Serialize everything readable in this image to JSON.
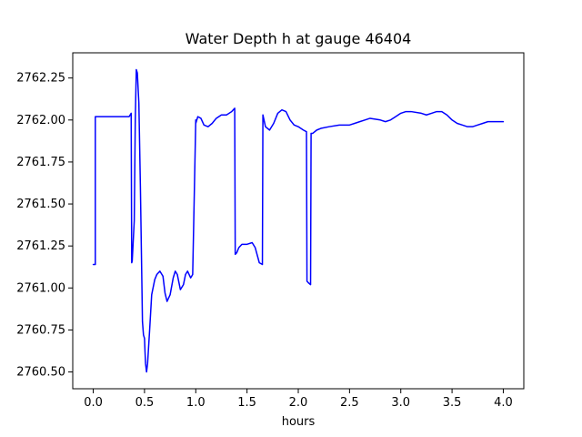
{
  "chart_data": {
    "type": "line",
    "title": "Water Depth h at gauge 46404",
    "xlabel": "hours",
    "ylabel": "",
    "xlim": [
      -0.2,
      4.2
    ],
    "ylim": [
      2760.4,
      2762.4
    ],
    "xticks": [
      0.0,
      0.5,
      1.0,
      1.5,
      2.0,
      2.5,
      3.0,
      3.5,
      4.0
    ],
    "yticks": [
      2760.5,
      2760.75,
      2761.0,
      2761.25,
      2761.5,
      2761.75,
      2762.0,
      2762.25
    ],
    "xtick_labels": [
      "0.0",
      "0.5",
      "1.0",
      "1.5",
      "2.0",
      "2.5",
      "3.0",
      "3.5",
      "4.0"
    ],
    "ytick_labels": [
      "2760.50",
      "2760.75",
      "2761.00",
      "2761.25",
      "2761.50",
      "2761.75",
      "2762.00",
      "2762.25"
    ],
    "grid": false,
    "legend": "none",
    "series": [
      {
        "color": "#0000ff",
        "x": [
          0.0,
          0.02,
          0.02,
          0.05,
          0.1,
          0.2,
          0.3,
          0.35,
          0.37,
          0.375,
          0.38,
          0.4,
          0.41,
          0.42,
          0.43,
          0.445,
          0.46,
          0.47,
          0.48,
          0.49,
          0.5,
          0.505,
          0.51,
          0.52,
          0.53,
          0.55,
          0.57,
          0.6,
          0.62,
          0.65,
          0.68,
          0.7,
          0.72,
          0.75,
          0.78,
          0.8,
          0.82,
          0.85,
          0.88,
          0.9,
          0.92,
          0.95,
          0.97,
          1.0,
          1.0,
          1.02,
          1.05,
          1.08,
          1.12,
          1.16,
          1.2,
          1.25,
          1.3,
          1.35,
          1.38,
          1.385,
          1.4,
          1.42,
          1.45,
          1.5,
          1.55,
          1.58,
          1.62,
          1.65,
          1.655,
          1.68,
          1.72,
          1.76,
          1.8,
          1.84,
          1.88,
          1.92,
          1.96,
          2.0,
          2.05,
          2.08,
          2.085,
          2.1,
          2.12,
          2.125,
          2.14,
          2.18,
          2.22,
          2.3,
          2.4,
          2.5,
          2.55,
          2.6,
          2.65,
          2.7,
          2.8,
          2.85,
          2.9,
          2.95,
          3.0,
          3.05,
          3.1,
          3.2,
          3.25,
          3.3,
          3.35,
          3.4,
          3.45,
          3.5,
          3.55,
          3.6,
          3.65,
          3.7,
          3.75,
          3.8,
          3.85,
          3.9,
          3.95,
          4.0
        ],
        "y": [
          2761.14,
          2761.14,
          2762.02,
          2762.02,
          2762.02,
          2762.02,
          2762.02,
          2762.02,
          2762.04,
          2761.15,
          2761.16,
          2761.4,
          2762.0,
          2762.3,
          2762.28,
          2762.1,
          2761.6,
          2761.2,
          2760.8,
          2760.72,
          2760.7,
          2760.62,
          2760.55,
          2760.5,
          2760.55,
          2760.75,
          2760.96,
          2761.05,
          2761.08,
          2761.1,
          2761.07,
          2760.97,
          2760.92,
          2760.96,
          2761.06,
          2761.1,
          2761.08,
          2760.99,
          2761.02,
          2761.08,
          2761.1,
          2761.06,
          2761.08,
          2762.0,
          2761.98,
          2762.02,
          2762.01,
          2761.97,
          2761.96,
          2761.98,
          2762.01,
          2762.03,
          2762.03,
          2762.05,
          2762.07,
          2761.2,
          2761.21,
          2761.24,
          2761.26,
          2761.26,
          2761.27,
          2761.24,
          2761.15,
          2761.14,
          2762.03,
          2761.96,
          2761.94,
          2761.98,
          2762.04,
          2762.06,
          2762.05,
          2762.0,
          2761.97,
          2761.96,
          2761.94,
          2761.93,
          2761.04,
          2761.03,
          2761.02,
          2761.92,
          2761.92,
          2761.94,
          2761.95,
          2761.96,
          2761.97,
          2761.97,
          2761.98,
          2761.99,
          2762.0,
          2762.01,
          2762.0,
          2761.99,
          2762.0,
          2762.02,
          2762.04,
          2762.05,
          2762.05,
          2762.04,
          2762.03,
          2762.04,
          2762.05,
          2762.05,
          2762.03,
          2762.0,
          2761.98,
          2761.97,
          2761.96,
          2761.96,
          2761.97,
          2761.98,
          2761.99,
          2761.99,
          2761.99,
          2761.99
        ]
      }
    ]
  }
}
